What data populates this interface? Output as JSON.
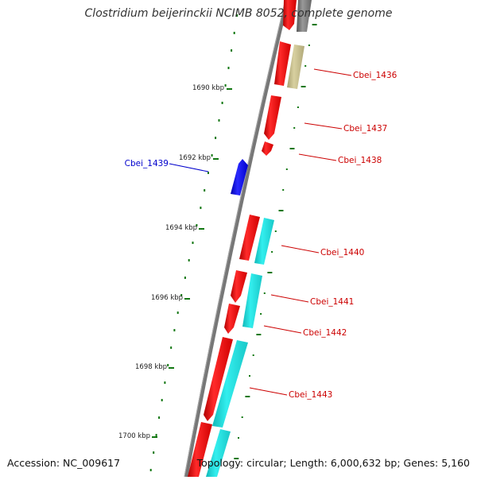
{
  "title": "Clostridium beijerinckii NCIMB 8052, complete genome",
  "footer": {
    "accession": "Accession: NC_009617",
    "summary": "Topology: circular; Length: 6,000,632 bp; Genes: 5,160"
  },
  "colors": {
    "backbone": "#777777",
    "forward_gene": "#ff0000",
    "reverse_gene": "#ff0000",
    "rna_feature": "#22dddd",
    "other_feature": "#c8c090",
    "highlight_gene": "#0000ff",
    "tick": "#117711",
    "label_red": "#cc0000",
    "label_blue": "#0000cc"
  },
  "scale_labels": [
    "1690 kbp",
    "1692 kbp",
    "1694 kbp",
    "1696 kbp",
    "1698 kbp",
    "1700 kbp"
  ],
  "gene_labels": [
    {
      "name": "Cbei_1436",
      "color": "red"
    },
    {
      "name": "Cbei_1437",
      "color": "red"
    },
    {
      "name": "Cbei_1438",
      "color": "red"
    },
    {
      "name": "Cbei_1439",
      "color": "blue"
    },
    {
      "name": "Cbei_1440",
      "color": "red"
    },
    {
      "name": "Cbei_1441",
      "color": "red"
    },
    {
      "name": "Cbei_1442",
      "color": "red"
    },
    {
      "name": "Cbei_1443",
      "color": "red"
    }
  ]
}
